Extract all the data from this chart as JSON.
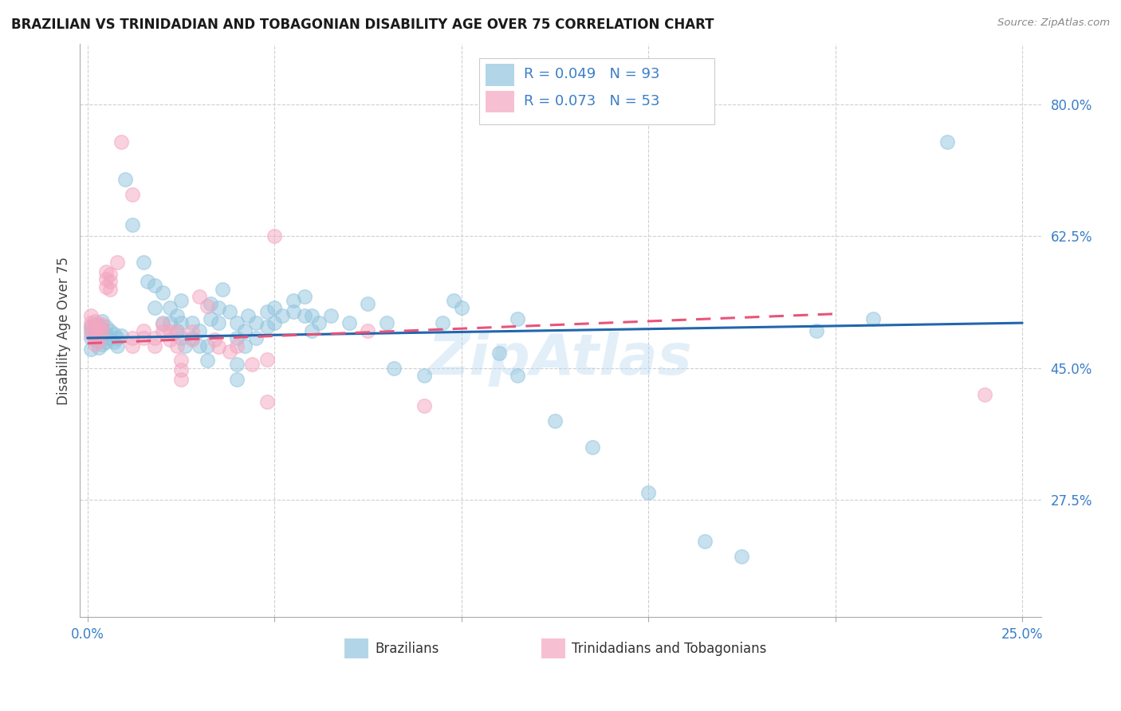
{
  "title": "BRAZILIAN VS TRINIDADIAN AND TOBAGONIAN DISABILITY AGE OVER 75 CORRELATION CHART",
  "source": "Source: ZipAtlas.com",
  "ylabel": "Disability Age Over 75",
  "x_ticks": [
    0.0,
    0.05,
    0.1,
    0.15,
    0.2,
    0.25
  ],
  "x_ticklabels": [
    "0.0%",
    "",
    "",
    "",
    "",
    "25.0%"
  ],
  "y_ticks": [
    0.275,
    0.45,
    0.625,
    0.8
  ],
  "y_ticklabels": [
    "27.5%",
    "45.0%",
    "62.5%",
    "80.0%"
  ],
  "xlim": [
    -0.002,
    0.255
  ],
  "ylim": [
    0.12,
    0.88
  ],
  "blue_color": "#92c5de",
  "pink_color": "#f4a6c0",
  "blue_line_color": "#2166ac",
  "pink_line_color": "#e8547a",
  "tick_color": "#3a7ec8",
  "watermark": "ZipAtlas",
  "blue_points": [
    [
      0.001,
      0.49
    ],
    [
      0.001,
      0.5
    ],
    [
      0.001,
      0.475
    ],
    [
      0.001,
      0.505
    ],
    [
      0.002,
      0.498
    ],
    [
      0.002,
      0.488
    ],
    [
      0.002,
      0.508
    ],
    [
      0.002,
      0.493
    ],
    [
      0.003,
      0.487
    ],
    [
      0.003,
      0.497
    ],
    [
      0.003,
      0.507
    ],
    [
      0.003,
      0.477
    ],
    [
      0.004,
      0.492
    ],
    [
      0.004,
      0.502
    ],
    [
      0.004,
      0.482
    ],
    [
      0.004,
      0.512
    ],
    [
      0.005,
      0.495
    ],
    [
      0.005,
      0.485
    ],
    [
      0.005,
      0.505
    ],
    [
      0.006,
      0.49
    ],
    [
      0.006,
      0.5
    ],
    [
      0.007,
      0.495
    ],
    [
      0.007,
      0.485
    ],
    [
      0.008,
      0.49
    ],
    [
      0.008,
      0.48
    ],
    [
      0.009,
      0.493
    ],
    [
      0.01,
      0.7
    ],
    [
      0.012,
      0.64
    ],
    [
      0.015,
      0.59
    ],
    [
      0.016,
      0.565
    ],
    [
      0.018,
      0.56
    ],
    [
      0.018,
      0.53
    ],
    [
      0.02,
      0.51
    ],
    [
      0.02,
      0.55
    ],
    [
      0.022,
      0.53
    ],
    [
      0.022,
      0.51
    ],
    [
      0.024,
      0.52
    ],
    [
      0.024,
      0.5
    ],
    [
      0.025,
      0.54
    ],
    [
      0.025,
      0.51
    ],
    [
      0.025,
      0.49
    ],
    [
      0.026,
      0.48
    ],
    [
      0.028,
      0.51
    ],
    [
      0.028,
      0.49
    ],
    [
      0.03,
      0.5
    ],
    [
      0.03,
      0.48
    ],
    [
      0.032,
      0.46
    ],
    [
      0.032,
      0.48
    ],
    [
      0.033,
      0.515
    ],
    [
      0.033,
      0.535
    ],
    [
      0.035,
      0.53
    ],
    [
      0.035,
      0.51
    ],
    [
      0.036,
      0.555
    ],
    [
      0.038,
      0.525
    ],
    [
      0.04,
      0.51
    ],
    [
      0.04,
      0.49
    ],
    [
      0.04,
      0.455
    ],
    [
      0.04,
      0.435
    ],
    [
      0.042,
      0.5
    ],
    [
      0.042,
      0.48
    ],
    [
      0.043,
      0.52
    ],
    [
      0.045,
      0.51
    ],
    [
      0.045,
      0.49
    ],
    [
      0.048,
      0.525
    ],
    [
      0.048,
      0.505
    ],
    [
      0.05,
      0.53
    ],
    [
      0.05,
      0.51
    ],
    [
      0.052,
      0.52
    ],
    [
      0.055,
      0.54
    ],
    [
      0.055,
      0.525
    ],
    [
      0.058,
      0.52
    ],
    [
      0.058,
      0.545
    ],
    [
      0.06,
      0.52
    ],
    [
      0.06,
      0.5
    ],
    [
      0.062,
      0.51
    ],
    [
      0.065,
      0.52
    ],
    [
      0.07,
      0.51
    ],
    [
      0.075,
      0.535
    ],
    [
      0.08,
      0.51
    ],
    [
      0.082,
      0.45
    ],
    [
      0.09,
      0.44
    ],
    [
      0.095,
      0.51
    ],
    [
      0.098,
      0.54
    ],
    [
      0.1,
      0.53
    ],
    [
      0.11,
      0.47
    ],
    [
      0.115,
      0.44
    ],
    [
      0.115,
      0.515
    ],
    [
      0.125,
      0.38
    ],
    [
      0.135,
      0.345
    ],
    [
      0.15,
      0.285
    ],
    [
      0.165,
      0.22
    ],
    [
      0.175,
      0.2
    ],
    [
      0.195,
      0.5
    ],
    [
      0.21,
      0.515
    ],
    [
      0.23,
      0.75
    ]
  ],
  "pink_points": [
    [
      0.001,
      0.51
    ],
    [
      0.001,
      0.495
    ],
    [
      0.001,
      0.52
    ],
    [
      0.001,
      0.505
    ],
    [
      0.002,
      0.502
    ],
    [
      0.002,
      0.492
    ],
    [
      0.002,
      0.512
    ],
    [
      0.002,
      0.482
    ],
    [
      0.003,
      0.497
    ],
    [
      0.003,
      0.487
    ],
    [
      0.003,
      0.507
    ],
    [
      0.004,
      0.498
    ],
    [
      0.004,
      0.508
    ],
    [
      0.005,
      0.568
    ],
    [
      0.005,
      0.578
    ],
    [
      0.005,
      0.558
    ],
    [
      0.006,
      0.575
    ],
    [
      0.006,
      0.565
    ],
    [
      0.006,
      0.555
    ],
    [
      0.008,
      0.59
    ],
    [
      0.009,
      0.75
    ],
    [
      0.012,
      0.68
    ],
    [
      0.012,
      0.49
    ],
    [
      0.012,
      0.48
    ],
    [
      0.015,
      0.5
    ],
    [
      0.015,
      0.49
    ],
    [
      0.018,
      0.49
    ],
    [
      0.018,
      0.48
    ],
    [
      0.02,
      0.498
    ],
    [
      0.02,
      0.508
    ],
    [
      0.022,
      0.498
    ],
    [
      0.022,
      0.488
    ],
    [
      0.024,
      0.48
    ],
    [
      0.024,
      0.498
    ],
    [
      0.025,
      0.46
    ],
    [
      0.025,
      0.448
    ],
    [
      0.025,
      0.435
    ],
    [
      0.028,
      0.498
    ],
    [
      0.028,
      0.488
    ],
    [
      0.03,
      0.545
    ],
    [
      0.032,
      0.532
    ],
    [
      0.034,
      0.488
    ],
    [
      0.035,
      0.478
    ],
    [
      0.038,
      0.472
    ],
    [
      0.04,
      0.479
    ],
    [
      0.044,
      0.455
    ],
    [
      0.048,
      0.462
    ],
    [
      0.048,
      0.405
    ],
    [
      0.05,
      0.625
    ],
    [
      0.075,
      0.5
    ],
    [
      0.09,
      0.4
    ],
    [
      0.24,
      0.415
    ]
  ],
  "blue_trendline": [
    [
      0.0,
      0.49
    ],
    [
      0.25,
      0.51
    ]
  ],
  "pink_trendline": [
    [
      0.0,
      0.483
    ],
    [
      0.2,
      0.522
    ]
  ]
}
